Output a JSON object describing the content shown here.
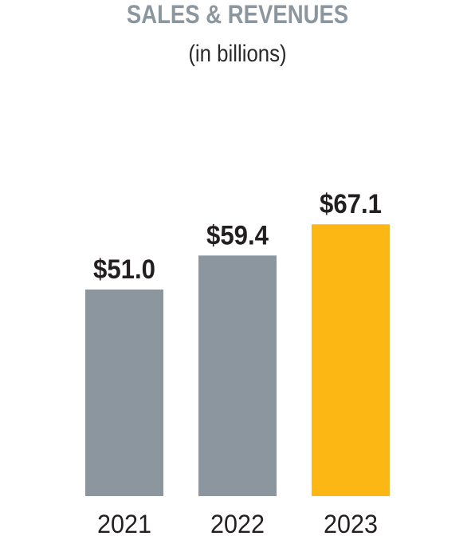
{
  "colors": {
    "title": "#8b969e",
    "bar_default": "#8b969e",
    "bar_highlight": "#fcb714",
    "text": "#231f20"
  },
  "chart_data": {
    "type": "bar",
    "title": "SALES & REVENUES",
    "subtitle": "(in billions)",
    "categories": [
      "2021",
      "2022",
      "2023"
    ],
    "values": [
      51.0,
      59.4,
      67.1
    ],
    "data_labels": [
      "$51.0",
      "$59.4",
      "$67.1"
    ],
    "highlight_index": 2,
    "ylim": [
      0,
      80
    ],
    "grid": false,
    "legend": "none"
  }
}
